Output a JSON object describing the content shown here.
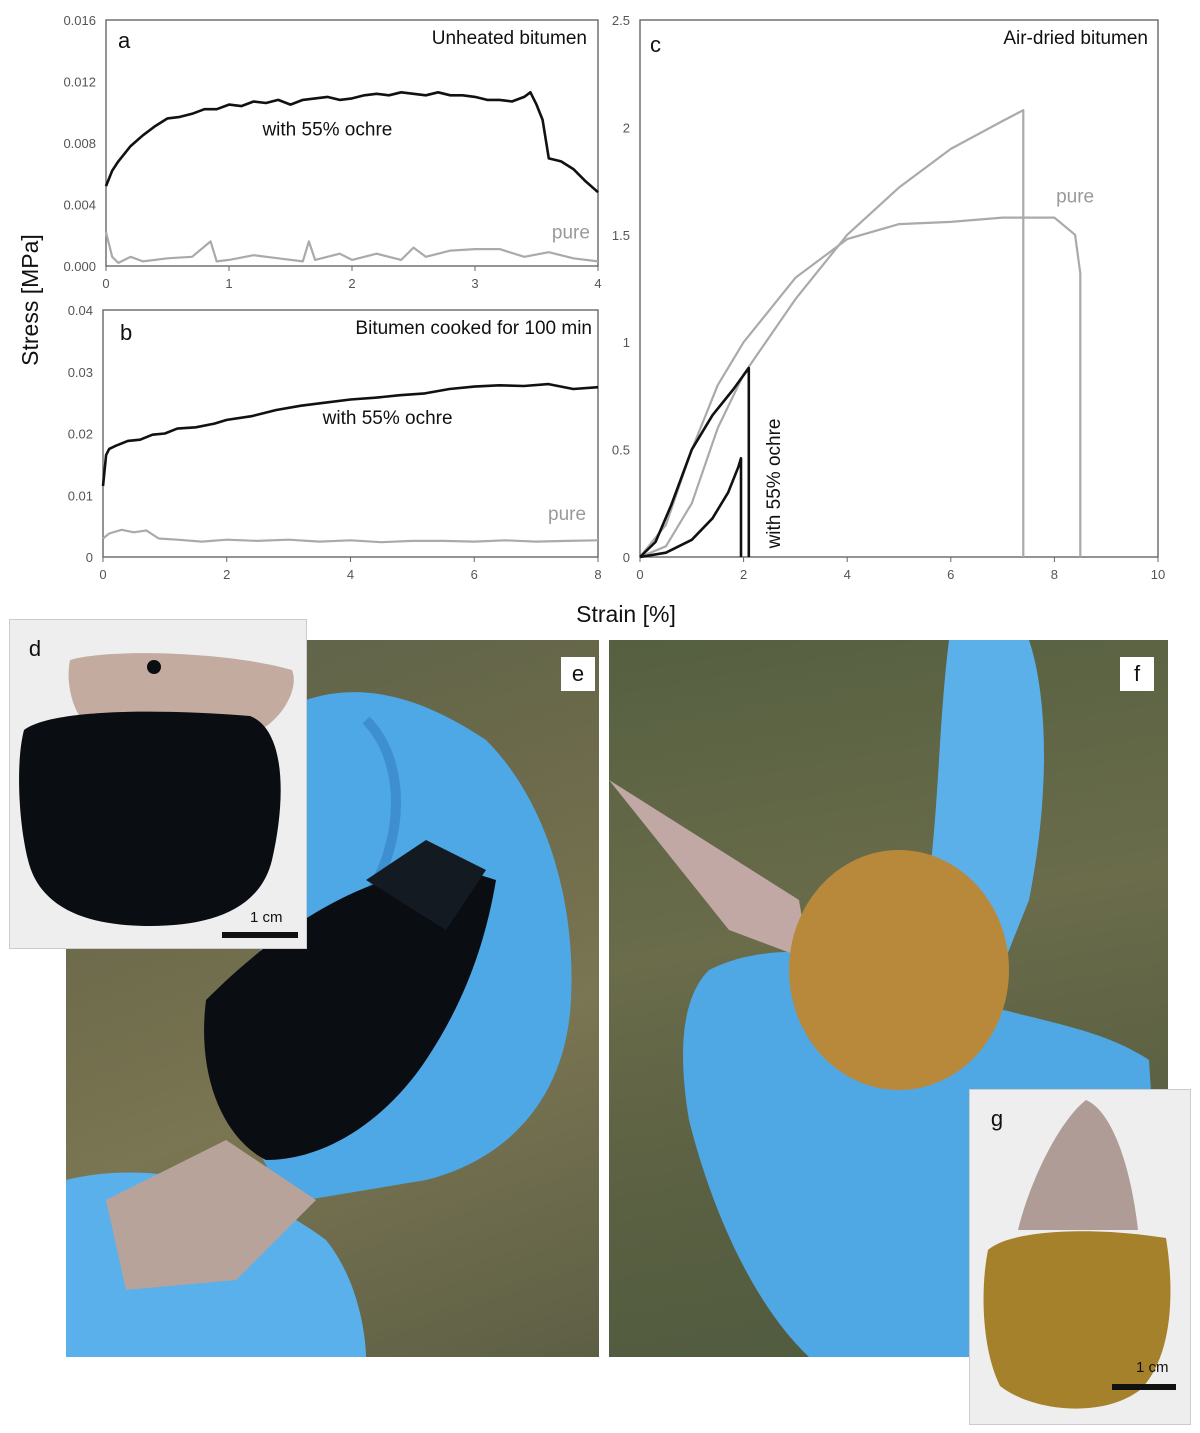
{
  "figure": {
    "y_axis_title": "Stress [MPa]",
    "x_axis_title": "Strain [%]"
  },
  "chart_data": [
    {
      "id": "a",
      "panel": "a",
      "type": "line",
      "title": "Unheated bitumen",
      "xlim": [
        0,
        4
      ],
      "ylim": [
        0,
        0.016
      ],
      "x_ticks": [
        "0",
        "1",
        "2",
        "3",
        "4"
      ],
      "y_ticks": [
        "0.000",
        "0.004",
        "0.008",
        "0.012",
        "0.016"
      ],
      "series": [
        {
          "name": "with 55% ochre",
          "color": "#111111",
          "x": [
            0,
            0.05,
            0.1,
            0.2,
            0.3,
            0.4,
            0.5,
            0.6,
            0.7,
            0.8,
            0.9,
            1.0,
            1.1,
            1.2,
            1.3,
            1.4,
            1.5,
            1.6,
            1.7,
            1.8,
            1.9,
            2.0,
            2.1,
            2.2,
            2.3,
            2.4,
            2.5,
            2.6,
            2.7,
            2.8,
            2.9,
            3.0,
            3.1,
            3.2,
            3.3,
            3.4,
            3.45,
            3.5,
            3.55,
            3.6,
            3.7,
            3.8,
            3.9,
            4.0
          ],
          "y": [
            0.0052,
            0.0062,
            0.0068,
            0.0078,
            0.0085,
            0.0091,
            0.0096,
            0.0097,
            0.0099,
            0.0102,
            0.0102,
            0.0105,
            0.0104,
            0.0107,
            0.0106,
            0.0108,
            0.0105,
            0.0108,
            0.0109,
            0.011,
            0.0108,
            0.0109,
            0.0111,
            0.0112,
            0.0111,
            0.0113,
            0.0112,
            0.0111,
            0.0113,
            0.0111,
            0.0111,
            0.011,
            0.0108,
            0.0108,
            0.0107,
            0.011,
            0.0113,
            0.0105,
            0.0095,
            0.007,
            0.0068,
            0.0063,
            0.0055,
            0.0048
          ]
        },
        {
          "name": "pure",
          "color": "#aaaaaa",
          "x": [
            0,
            0.05,
            0.1,
            0.2,
            0.3,
            0.5,
            0.7,
            0.85,
            0.9,
            1.0,
            1.2,
            1.4,
            1.6,
            1.65,
            1.7,
            1.9,
            2.0,
            2.2,
            2.4,
            2.5,
            2.6,
            2.8,
            3.0,
            3.2,
            3.4,
            3.6,
            3.8,
            4.0
          ],
          "y": [
            0.0022,
            0.0006,
            0.0002,
            0.0006,
            0.0003,
            0.0005,
            0.0006,
            0.0016,
            0.0003,
            0.0004,
            0.0007,
            0.0005,
            0.0003,
            0.0016,
            0.0004,
            0.0008,
            0.0004,
            0.0008,
            0.0004,
            0.0012,
            0.0006,
            0.001,
            0.0011,
            0.0011,
            0.0006,
            0.0009,
            0.0005,
            0.0003
          ]
        }
      ],
      "annotations": [
        {
          "text": "with 55% ochre",
          "x": 1.8,
          "y": 0.0085
        },
        {
          "text": "pure",
          "x": 3.78,
          "y": 0.0018
        }
      ]
    },
    {
      "id": "b",
      "panel": "b",
      "type": "line",
      "title": "Bitumen cooked for 100 min",
      "xlim": [
        0,
        8
      ],
      "ylim": [
        0,
        0.04
      ],
      "x_ticks": [
        "0",
        "2",
        "4",
        "6",
        "8"
      ],
      "y_ticks": [
        "0",
        "0.01",
        "0.02",
        "0.03",
        "0.04"
      ],
      "series": [
        {
          "name": "with 55% ochre",
          "color": "#111111",
          "x": [
            0,
            0.05,
            0.1,
            0.2,
            0.4,
            0.6,
            0.8,
            1.0,
            1.2,
            1.5,
            1.8,
            2.0,
            2.4,
            2.8,
            3.2,
            3.6,
            4.0,
            4.4,
            4.8,
            5.2,
            5.6,
            6.0,
            6.4,
            6.8,
            7.2,
            7.6,
            8.0
          ],
          "y": [
            0.0115,
            0.0165,
            0.0175,
            0.018,
            0.0188,
            0.019,
            0.0198,
            0.02,
            0.0208,
            0.021,
            0.0216,
            0.0222,
            0.0228,
            0.0238,
            0.0245,
            0.025,
            0.0255,
            0.0258,
            0.0262,
            0.0265,
            0.0272,
            0.0276,
            0.0278,
            0.0277,
            0.028,
            0.0272,
            0.0275
          ]
        },
        {
          "name": "pure",
          "color": "#aaaaaa",
          "x": [
            0,
            0.1,
            0.3,
            0.5,
            0.7,
            0.9,
            1.2,
            1.6,
            2.0,
            2.5,
            3.0,
            3.5,
            4.0,
            4.5,
            5.0,
            5.5,
            6.0,
            6.5,
            7.0,
            7.5,
            8.0
          ],
          "y": [
            0.003,
            0.0038,
            0.0044,
            0.004,
            0.0043,
            0.003,
            0.0028,
            0.0025,
            0.0028,
            0.0026,
            0.0028,
            0.0025,
            0.0027,
            0.0024,
            0.0026,
            0.0026,
            0.0025,
            0.0027,
            0.0025,
            0.0026,
            0.0027
          ]
        }
      ],
      "annotations": [
        {
          "text": "with 55% ochre",
          "x": 4.6,
          "y": 0.0215
        },
        {
          "text": "pure",
          "x": 7.5,
          "y": 0.006
        }
      ]
    },
    {
      "id": "c",
      "panel": "c",
      "type": "line",
      "title": "Air-dried bitumen",
      "xlim": [
        0,
        10
      ],
      "ylim": [
        0,
        2.5
      ],
      "x_ticks": [
        "0",
        "2",
        "4",
        "6",
        "8",
        "10"
      ],
      "y_ticks": [
        "0",
        "0.5",
        "1",
        "1.5",
        "2",
        "2.5"
      ],
      "series": [
        {
          "name": "pure (specimen 1)",
          "color": "#aaaaaa",
          "x": [
            0,
            0.5,
            1.0,
            1.5,
            2.0,
            3.0,
            4.0,
            5.0,
            6.0,
            7.0,
            7.4,
            7.4
          ],
          "y": [
            0,
            0.05,
            0.25,
            0.6,
            0.85,
            1.2,
            1.5,
            1.72,
            1.9,
            2.03,
            2.08,
            0
          ]
        },
        {
          "name": "pure (specimen 2)",
          "color": "#aaaaaa",
          "x": [
            0,
            0.5,
            1.0,
            1.5,
            2.0,
            3.0,
            4.0,
            5.0,
            6.0,
            7.0,
            8.0,
            8.4,
            8.5,
            8.5
          ],
          "y": [
            0,
            0.15,
            0.5,
            0.8,
            1.0,
            1.3,
            1.48,
            1.55,
            1.56,
            1.58,
            1.58,
            1.5,
            1.32,
            0
          ]
        },
        {
          "name": "with 55% ochre (specimen 1)",
          "color": "#111111",
          "x": [
            0,
            0.3,
            0.6,
            1.0,
            1.4,
            1.8,
            2.1,
            2.1
          ],
          "y": [
            0,
            0.07,
            0.24,
            0.5,
            0.66,
            0.78,
            0.88,
            0
          ]
        },
        {
          "name": "with 55% ochre (specimen 2)",
          "color": "#111111",
          "x": [
            0,
            0.5,
            1.0,
            1.4,
            1.7,
            1.9,
            1.95,
            1.95
          ],
          "y": [
            0,
            0.02,
            0.08,
            0.18,
            0.3,
            0.42,
            0.46,
            0
          ]
        }
      ],
      "annotations": [
        {
          "text": "pure",
          "x": 8.4,
          "y": 1.65
        },
        {
          "text": "with 55% ochre",
          "x": 2.7,
          "y": 0.04,
          "rotation": -90
        }
      ]
    }
  ],
  "photos": {
    "d": {
      "letter": "d",
      "scale": "1 cm"
    },
    "e": {
      "letter": "e"
    },
    "f": {
      "letter": "f"
    },
    "g": {
      "letter": "g",
      "scale": "1 cm"
    }
  },
  "colors": {
    "bitumen": "#0a0d12",
    "glove": "#5fb3e8",
    "ochre": "#b48a3a",
    "stone": "#b8a39a",
    "grass": "#6b6a48"
  }
}
